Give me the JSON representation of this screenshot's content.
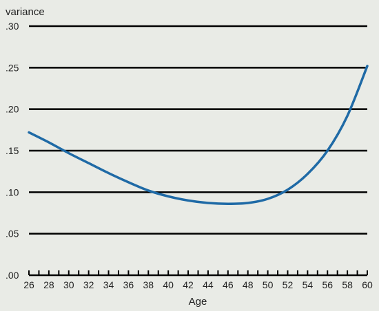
{
  "chart_data": {
    "type": "line",
    "title": "",
    "ylabel": "variance",
    "xlabel": "Age",
    "xlim": [
      26,
      60
    ],
    "ylim": [
      0,
      0.3
    ],
    "grid": true,
    "legend": "none",
    "x_ticks": [
      26,
      28,
      30,
      32,
      34,
      36,
      38,
      40,
      42,
      44,
      46,
      48,
      50,
      52,
      54,
      56,
      58,
      60
    ],
    "x_tick_labels": [
      "26",
      "28",
      "30",
      "32",
      "34",
      "36",
      "38",
      "40",
      "42",
      "44",
      "46",
      "48",
      "50",
      "52",
      "54",
      "56",
      "58",
      "60"
    ],
    "y_ticks": [
      0,
      0.05,
      0.1,
      0.15,
      0.2,
      0.25,
      0.3
    ],
    "y_tick_labels": [
      ".00",
      ".05",
      ".10",
      ".15",
      ".20",
      ".25",
      ".30"
    ],
    "series": [
      {
        "color": "#1f6aa6",
        "x": [
          26,
          28,
          30,
          32,
          34,
          36,
          38,
          40,
          42,
          44,
          46,
          48,
          50,
          52,
          54,
          56,
          58,
          60
        ],
        "y": [
          0.172,
          0.16,
          0.147,
          0.135,
          0.123,
          0.112,
          0.102,
          0.095,
          0.09,
          0.087,
          0.086,
          0.087,
          0.092,
          0.103,
          0.122,
          0.15,
          0.192,
          0.252
        ]
      }
    ]
  },
  "colors": {
    "background": "#e9ebe6",
    "gridline": "#000000",
    "series": "#1f6aa6"
  }
}
